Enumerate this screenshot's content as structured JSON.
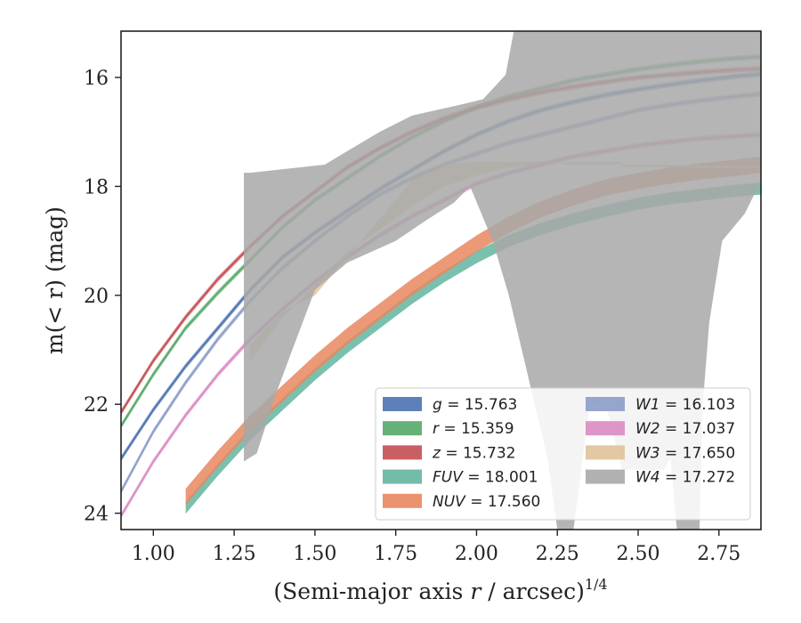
{
  "chart_data": {
    "type": "line",
    "xlabel": "(Semi-major axis r / arcsec)",
    "xlabel_var": "r",
    "xlabel_exponent": "1/4",
    "ylabel": "m(< r) (mag)",
    "xlim": [
      0.9,
      2.88
    ],
    "ylim": [
      24.3,
      15.15
    ],
    "y_inverted": true,
    "x_ticks": [
      1.0,
      1.25,
      1.5,
      1.75,
      2.0,
      2.25,
      2.5,
      2.75
    ],
    "x_tick_labels": [
      "1.00",
      "1.25",
      "1.50",
      "1.75",
      "2.00",
      "2.25",
      "2.50",
      "2.75"
    ],
    "y_ticks": [
      16,
      18,
      20,
      22,
      24
    ],
    "y_tick_labels": [
      "16",
      "18",
      "20",
      "22",
      "24"
    ],
    "grid": false,
    "legend_position": "lower-right",
    "legend_columns": 2,
    "series": [
      {
        "name": "g",
        "label": "g = 15.763",
        "color": "#4c72b0",
        "kind": "line",
        "width": 0.1,
        "x": [
          0.9,
          1.0,
          1.1,
          1.2,
          1.3,
          1.4,
          1.5,
          1.6,
          1.7,
          1.8,
          1.9,
          2.0,
          2.1,
          2.2,
          2.3,
          2.4,
          2.5,
          2.6,
          2.7,
          2.8,
          2.88
        ],
        "y": [
          23.0,
          22.1,
          21.3,
          20.6,
          19.9,
          19.3,
          18.85,
          18.45,
          18.05,
          17.7,
          17.35,
          17.05,
          16.8,
          16.6,
          16.45,
          16.32,
          16.22,
          16.13,
          16.05,
          15.98,
          15.94
        ]
      },
      {
        "name": "r",
        "label": "r = 15.359",
        "color": "#55a868",
        "kind": "line",
        "width": 0.1,
        "x": [
          0.9,
          1.0,
          1.1,
          1.2,
          1.3,
          1.4,
          1.5,
          1.6,
          1.7,
          1.8,
          1.9,
          2.0,
          2.1,
          2.2,
          2.3,
          2.4,
          2.5,
          2.6,
          2.7,
          2.8,
          2.88
        ],
        "y": [
          22.4,
          21.45,
          20.6,
          19.95,
          19.35,
          18.75,
          18.25,
          17.85,
          17.45,
          17.1,
          16.8,
          16.55,
          16.35,
          16.2,
          16.05,
          15.95,
          15.85,
          15.77,
          15.7,
          15.65,
          15.62
        ]
      },
      {
        "name": "z",
        "label": "z = 15.732",
        "color": "#c44e52",
        "kind": "line",
        "width": 0.1,
        "x": [
          0.9,
          1.0,
          1.1,
          1.2,
          1.3,
          1.4,
          1.5,
          1.6,
          1.7,
          1.8,
          1.9,
          2.0,
          2.1,
          2.2,
          2.3,
          2.4,
          2.5,
          2.6,
          2.7,
          2.8,
          2.88
        ],
        "y": [
          22.15,
          21.2,
          20.4,
          19.7,
          19.1,
          18.55,
          18.1,
          17.65,
          17.3,
          17.0,
          16.75,
          16.55,
          16.4,
          16.27,
          16.17,
          16.08,
          16.0,
          15.95,
          15.9,
          15.86,
          15.84
        ]
      },
      {
        "name": "FUV",
        "label": "FUV = 18.001",
        "color": "#64b5a0",
        "kind": "band",
        "width": 0.22,
        "x": [
          1.1,
          1.2,
          1.3,
          1.4,
          1.5,
          1.6,
          1.7,
          1.8,
          1.9,
          2.0,
          2.1,
          2.2,
          2.3,
          2.4,
          2.5,
          2.6,
          2.7,
          2.8,
          2.88
        ],
        "y": [
          23.9,
          23.2,
          22.55,
          22.0,
          21.45,
          20.95,
          20.5,
          20.05,
          19.65,
          19.3,
          19.0,
          18.78,
          18.6,
          18.45,
          18.32,
          18.22,
          18.15,
          18.08,
          18.04
        ]
      },
      {
        "name": "NUV",
        "label": "NUV = 17.560",
        "color": "#e8875f",
        "kind": "band",
        "width": 0.3,
        "x": [
          1.1,
          1.2,
          1.3,
          1.4,
          1.5,
          1.6,
          1.7,
          1.8,
          1.9,
          2.0,
          2.1,
          2.2,
          2.3,
          2.4,
          2.5,
          2.6,
          2.7,
          2.8,
          2.88
        ],
        "y": [
          23.7,
          23.0,
          22.35,
          21.8,
          21.25,
          20.75,
          20.3,
          19.85,
          19.45,
          19.05,
          18.7,
          18.42,
          18.2,
          18.02,
          17.9,
          17.8,
          17.72,
          17.66,
          17.6
        ]
      },
      {
        "name": "W1",
        "label": "W1 = 16.103",
        "color": "#8c9cc8",
        "kind": "line",
        "width": 0.1,
        "x": [
          0.9,
          1.0,
          1.1,
          1.2,
          1.3,
          1.4,
          1.5,
          1.6,
          1.7,
          1.8,
          1.9,
          2.0,
          2.1,
          2.2,
          2.3,
          2.4,
          2.5,
          2.6,
          2.7,
          2.8,
          2.88
        ],
        "y": [
          23.6,
          22.5,
          21.6,
          20.8,
          20.1,
          19.5,
          19.0,
          18.55,
          18.15,
          17.85,
          17.6,
          17.4,
          17.2,
          17.05,
          16.9,
          16.75,
          16.6,
          16.5,
          16.42,
          16.35,
          16.3
        ]
      },
      {
        "name": "W2",
        "label": "W2 = 17.037",
        "color": "#da8bc3",
        "kind": "line",
        "width": 0.1,
        "x": [
          0.9,
          1.0,
          1.1,
          1.2,
          1.3,
          1.4,
          1.5,
          1.6,
          1.7,
          1.8,
          1.9,
          2.0,
          2.1,
          2.2,
          2.3,
          2.4,
          2.5,
          2.6,
          2.7,
          2.8,
          2.88
        ],
        "y": [
          24.05,
          23.05,
          22.2,
          21.45,
          20.8,
          20.25,
          19.75,
          19.3,
          18.9,
          18.55,
          18.25,
          17.95,
          17.75,
          17.6,
          17.45,
          17.35,
          17.25,
          17.18,
          17.12,
          17.08,
          17.05
        ]
      },
      {
        "name": "W3",
        "label": "W3 = 17.650",
        "color": "#e0c29a",
        "kind": "band_var",
        "x": [
          1.3,
          1.4,
          1.5,
          1.6,
          1.7,
          1.8,
          1.9,
          2.0,
          2.1,
          2.2,
          2.3,
          2.4,
          2.45
        ],
        "y_low": [
          21.2,
          20.4,
          19.8,
          19.2,
          18.8,
          18.35,
          18.0,
          17.8,
          17.65,
          17.6,
          17.55,
          17.55,
          17.55
        ],
        "y_high": [
          20.9,
          20.3,
          20.0,
          19.3,
          18.6,
          17.9,
          17.6,
          17.55,
          17.55,
          17.55,
          17.6,
          17.6,
          17.6
        ],
        "extension": {
          "x": [
            2.45,
            2.88
          ],
          "y": [
            17.62,
            17.65
          ]
        }
      },
      {
        "name": "W4",
        "label": "W4 = 17.272",
        "color": "#a8a8a8",
        "kind": "polygon",
        "x": [
          1.28,
          1.3,
          1.53,
          1.7,
          1.8,
          1.95,
          2.02,
          2.09,
          2.12,
          2.88,
          2.88,
          2.83,
          2.76,
          2.72,
          2.7,
          2.69,
          2.67,
          2.62,
          2.6,
          2.58,
          2.5,
          2.45,
          2.4,
          2.35,
          2.3,
          2.28,
          2.25,
          2.22,
          2.18,
          2.1,
          2.05,
          1.98,
          1.93,
          1.85,
          1.75,
          1.6,
          1.5,
          1.43,
          1.38,
          1.32,
          1.28
        ],
        "y": [
          17.75,
          17.75,
          17.6,
          17.0,
          16.7,
          16.5,
          16.4,
          15.95,
          15.0,
          15.0,
          17.9,
          18.5,
          19.0,
          20.5,
          22.0,
          24.3,
          24.3,
          24.3,
          23.0,
          23.2,
          23.2,
          23.2,
          22.0,
          22.0,
          24.3,
          24.3,
          24.3,
          23.0,
          22.0,
          20.0,
          19.0,
          18.0,
          18.3,
          18.6,
          19.0,
          19.4,
          19.9,
          21.0,
          21.8,
          22.9,
          23.05
        ]
      }
    ]
  }
}
